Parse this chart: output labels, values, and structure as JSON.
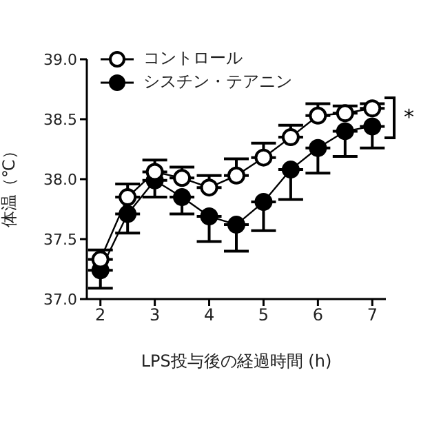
{
  "chart_data": {
    "type": "line",
    "xlabel": "LPS投与後の経過時間 (h)",
    "ylabel": "体温（℃）",
    "x": [
      2,
      2.5,
      3,
      3.5,
      4,
      4.5,
      5,
      5.5,
      6,
      6.5,
      7
    ],
    "series": [
      {
        "name": "コントロール",
        "color": "#000000",
        "values": [
          37.33,
          37.85,
          38.06,
          38.01,
          37.93,
          38.03,
          38.18,
          38.35,
          38.53,
          38.55,
          38.59
        ],
        "errors": [
          [
            37.33,
            37.41
          ],
          [
            37.85,
            37.96
          ],
          [
            38.06,
            38.16
          ],
          [
            38.01,
            38.1
          ],
          [
            37.93,
            38.03
          ],
          [
            38.03,
            38.17
          ],
          [
            38.18,
            38.3
          ],
          [
            38.35,
            38.45
          ],
          [
            38.53,
            38.63
          ],
          [
            38.55,
            38.61
          ],
          [
            38.59,
            38.63
          ]
        ]
      },
      {
        "name": "シスチン・テアニン",
        "color": "#000000",
        "values": [
          37.24,
          37.71,
          37.99,
          37.85,
          37.69,
          37.62,
          37.81,
          38.08,
          38.26,
          38.4,
          38.44
        ],
        "errors": [
          [
            37.09,
            37.24
          ],
          [
            37.55,
            37.71
          ],
          [
            37.85,
            37.99
          ],
          [
            37.71,
            37.85
          ],
          [
            37.48,
            37.69
          ],
          [
            37.4,
            37.62
          ],
          [
            37.57,
            37.81
          ],
          [
            37.83,
            38.08
          ],
          [
            38.05,
            38.26
          ],
          [
            38.19,
            38.4
          ],
          [
            38.26,
            38.44
          ]
        ]
      }
    ],
    "xlim": [
      1.75,
      7.25
    ],
    "xticks": [
      2,
      3,
      4,
      5,
      6,
      7
    ],
    "ylim": [
      37,
      39
    ],
    "yticks": [
      {
        "value": 37,
        "label": "37.0"
      },
      {
        "value": 37.5,
        "label": "37.5"
      },
      {
        "value": 38,
        "label": "38.0"
      },
      {
        "value": 38.5,
        "label": "38.5"
      },
      {
        "value": 39,
        "label": "39.0"
      }
    ],
    "annotations": [
      "*"
    ],
    "marker": "circle",
    "line_style": "solid",
    "grid": false,
    "legend": "top left"
  }
}
